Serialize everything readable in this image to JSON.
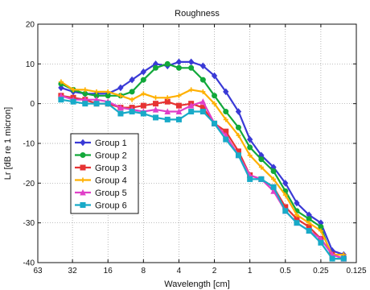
{
  "chart_data": {
    "type": "line",
    "title": "Roughness",
    "xlabel": "Wavelength [cm]",
    "ylabel": "Lr [dB re 1 micron]",
    "xscale": "log2",
    "xaxis_reversed": true,
    "xlim": [
      63,
      0.125
    ],
    "ylim": [
      -40,
      20
    ],
    "x_ticks": [
      63,
      32,
      16,
      8,
      4,
      2,
      1,
      0.5,
      0.25,
      0.125
    ],
    "x_tick_labels": [
      "63",
      "32",
      "16",
      "8",
      "4",
      "2",
      "1",
      "0.5",
      "0.25",
      "0.125"
    ],
    "y_ticks": [
      -40,
      -30,
      -20,
      -10,
      0,
      10,
      20
    ],
    "y_tick_labels": [
      "-40",
      "-30",
      "-20",
      "-10",
      "0",
      "10",
      "20"
    ],
    "grid": true,
    "legend_position": "left",
    "x": [
      40,
      31.5,
      25,
      20,
      16,
      12.5,
      10,
      8,
      6.3,
      5,
      4,
      3.15,
      2.5,
      2,
      1.6,
      1.25,
      1,
      0.8,
      0.63,
      0.5,
      0.4,
      0.315,
      0.25,
      0.2,
      0.16
    ],
    "series": [
      {
        "name": "Group 1",
        "color": "#3a3ad6",
        "marker": "diamond",
        "values": [
          4,
          3,
          2.5,
          2.5,
          2.5,
          4,
          6,
          8,
          10,
          9.5,
          10.5,
          10.5,
          9.5,
          7,
          3,
          -2,
          -9,
          -13,
          -16,
          -20,
          -25,
          -28,
          -30,
          -37,
          -38
        ]
      },
      {
        "name": "Group 2",
        "color": "#12a83a",
        "marker": "circle",
        "values": [
          5,
          3.5,
          2.5,
          2,
          2,
          2,
          3,
          6,
          9,
          10,
          9,
          9,
          6,
          2,
          -2,
          -6,
          -11,
          -14,
          -17,
          -22,
          -27,
          -29,
          -31,
          -39,
          -39
        ]
      },
      {
        "name": "Group 3",
        "color": "#e63333",
        "marker": "square",
        "values": [
          2,
          1.5,
          1,
          0,
          0,
          -1,
          -1,
          -0.5,
          0,
          0.5,
          -0.5,
          0,
          -1,
          -5,
          -7,
          -12,
          -18,
          -19,
          -21,
          -26,
          -29,
          -31,
          -34,
          -38,
          -39
        ]
      },
      {
        "name": "Group 4",
        "color": "#ffb000",
        "marker": "plus",
        "values": [
          5.5,
          3.5,
          3.5,
          3,
          3,
          2,
          1,
          2.5,
          1.5,
          1.5,
          2,
          3.5,
          3,
          0,
          -4,
          -8,
          -13,
          -16,
          -19,
          -23,
          -28,
          -30,
          -32,
          -38,
          -38
        ]
      },
      {
        "name": "Group 5",
        "color": "#e040c8",
        "marker": "triangle",
        "values": [
          2,
          1,
          1,
          1,
          0.5,
          -1,
          -1.5,
          -2,
          -1.5,
          -2,
          -2,
          -0.5,
          0.5,
          -5,
          -8,
          -13,
          -18,
          -19,
          -22,
          -27,
          -30,
          -32,
          -34,
          -38,
          -39
        ]
      },
      {
        "name": "Group 6",
        "color": "#18aac8",
        "marker": "square",
        "values": [
          1,
          0.5,
          0,
          0,
          0,
          -2.5,
          -2,
          -2.5,
          -3.5,
          -4,
          -4,
          -2,
          -2,
          -5,
          -9,
          -13,
          -19,
          -19,
          -21,
          -27,
          -30,
          -32,
          -35,
          -39,
          -39
        ]
      }
    ]
  }
}
